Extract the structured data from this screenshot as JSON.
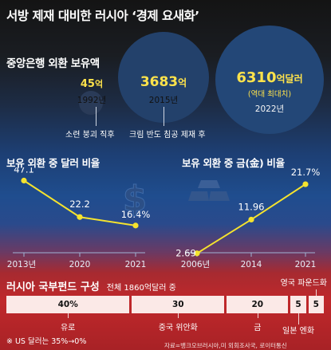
{
  "header": {
    "title": "서방 제재 대비한 러시아 ‘경제 요새화’"
  },
  "reserves": {
    "section_title": "중앙은행 외환 보유액",
    "items": [
      {
        "value": "45",
        "unit": "억",
        "year": "1992년",
        "note": "소련 붕괴 직후"
      },
      {
        "value": "3683",
        "unit": "억",
        "year": "2015년",
        "note": "크림 반도 침공 제재 후"
      },
      {
        "value": "6310",
        "unit": "억달러",
        "sub": "(역대 최대치)",
        "year": "2022년"
      }
    ]
  },
  "chart_data": [
    {
      "type": "line",
      "title": "보유 외환 중 달러 비율",
      "categories": [
        "2013년",
        "2020",
        "2021"
      ],
      "values": [
        47.1,
        22.2,
        16.4
      ],
      "value_labels": [
        "47.1",
        "22.2",
        "16.4%"
      ],
      "ylim": [
        0,
        55
      ],
      "icon": "dollar-icon",
      "color": "#f5e32e"
    },
    {
      "type": "line",
      "title": "보유 외환 중 금(金) 비율",
      "categories": [
        "2006년",
        "2014",
        "2021"
      ],
      "values": [
        2.69,
        11.96,
        21.7
      ],
      "value_labels": [
        "2.69",
        "11.96",
        "21.7%"
      ],
      "ylim": [
        0,
        25
      ],
      "icon": "gold-bars-icon",
      "color": "#f5e32e"
    },
    {
      "type": "bar",
      "stacked": true,
      "title": "러시아 국부펀드 구성",
      "subtitle": "전체 1860억달러 중",
      "categories": [
        "유로",
        "중국 위안화",
        "금",
        "일본 엔화",
        "영국 파운드화"
      ],
      "values": [
        40,
        30,
        20,
        5,
        5
      ],
      "value_labels": [
        "40%",
        "30",
        "20",
        "5",
        "5"
      ],
      "unit": "%",
      "colors": {
        "bar": "#fbe9e7",
        "text": "#111111"
      }
    }
  ],
  "footnotes": {
    "us_dollar": "※ US 달러는 35%→0%",
    "source": "자료=뱅크오브러시아,미 외회조사국, 로이터통신"
  }
}
